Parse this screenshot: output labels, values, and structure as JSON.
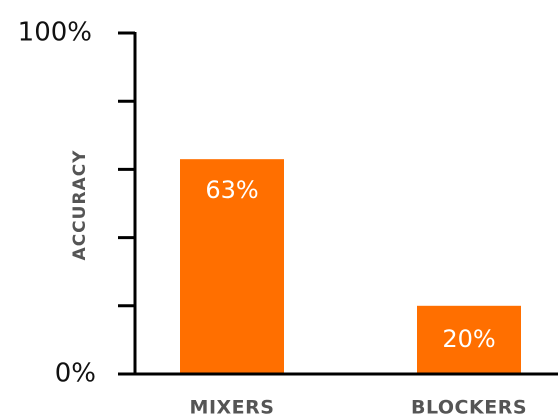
{
  "chart_data": {
    "type": "bar",
    "categories": [
      "MIXERS",
      "BLOCKERS"
    ],
    "values": [
      63,
      20
    ],
    "value_labels": [
      "63%",
      "20%"
    ],
    "title": "",
    "xlabel": "",
    "ylabel": "ACCURACY",
    "ylim": [
      0,
      100
    ],
    "y_tick_labels": [
      "0%",
      "100%"
    ],
    "minor_ticks": [
      20,
      40,
      60,
      80
    ],
    "bar_color": "#FF6F00",
    "grid": false,
    "legend": "none"
  }
}
